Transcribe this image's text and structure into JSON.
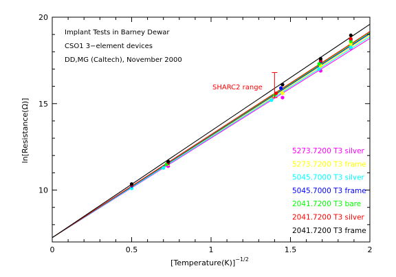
{
  "chart_data": {
    "type": "scatter",
    "xlabel_base": "[Temperature(K)]",
    "xlabel_exponent": "−1/2",
    "ylabel": "ln[Resistance(Ω)]",
    "xlim": [
      0,
      2
    ],
    "ylim": [
      7,
      20
    ],
    "x_ticks": [
      {
        "v": 0,
        "label": "0"
      },
      {
        "v": 0.5,
        "label": "0.5"
      },
      {
        "v": 1,
        "label": "1"
      },
      {
        "v": 1.5,
        "label": "1.5"
      },
      {
        "v": 2,
        "label": "2"
      }
    ],
    "y_ticks": [
      {
        "v": 10,
        "label": "10"
      },
      {
        "v": 15,
        "label": "15"
      },
      {
        "v": 20,
        "label": "20"
      }
    ],
    "notes": [
      "Implant Tests in Barney Dewar",
      "CSO1 3−element devices",
      "DD,MG (Caltech), November 2000"
    ],
    "annotation": {
      "text": "SHARC2 range",
      "color": "#ff0000",
      "x": 1.4,
      "y_low": 15.35,
      "y_high": 16.8
    },
    "series": [
      {
        "name": "5273.7200 T3 silver",
        "color": "#ff00ff",
        "intercept": 7.25,
        "slope": 5.76,
        "points": [
          [
            0.5,
            10.15
          ],
          [
            0.73,
            11.38
          ],
          [
            1.45,
            15.35
          ],
          [
            1.69,
            16.9
          ],
          [
            1.88,
            18.2
          ]
        ]
      },
      {
        "name": "5273.7200 T3 frame",
        "color": "#ffff00",
        "intercept": 7.25,
        "slope": 5.86,
        "points": [
          [
            0.5,
            10.2
          ],
          [
            0.73,
            11.5
          ],
          [
            1.45,
            15.6
          ],
          [
            1.69,
            17.2
          ],
          [
            1.88,
            18.45
          ]
        ]
      },
      {
        "name": "5045.7000 T3 silver",
        "color": "#00ffff",
        "intercept": 7.25,
        "slope": 5.81,
        "points": [
          [
            0.5,
            10.1
          ],
          [
            0.7,
            11.28
          ],
          [
            1.38,
            15.2
          ],
          [
            1.68,
            17.0
          ],
          [
            1.88,
            18.25
          ]
        ]
      },
      {
        "name": "5045.7000 T3 frame",
        "color": "#0000ff",
        "intercept": 7.25,
        "slope": 5.9,
        "points": [
          [
            0.5,
            10.25
          ],
          [
            0.73,
            11.55
          ],
          [
            1.44,
            15.9
          ],
          [
            1.69,
            17.45
          ],
          [
            1.88,
            18.7
          ]
        ]
      },
      {
        "name": "2041.7200 T3 bare",
        "color": "#00ff00",
        "intercept": 7.25,
        "slope": 5.93,
        "points": [
          [
            0.5,
            10.3
          ],
          [
            0.72,
            11.5
          ],
          [
            1.4,
            15.5
          ],
          [
            1.68,
            17.3
          ],
          [
            1.88,
            18.6
          ]
        ]
      },
      {
        "name": "2041.7200 T3 silver",
        "color": "#ff0000",
        "intercept": 7.25,
        "slope": 5.96,
        "points": [
          [
            0.5,
            10.3
          ],
          [
            0.73,
            11.6
          ],
          [
            1.41,
            15.6
          ],
          [
            1.69,
            17.5
          ],
          [
            1.88,
            18.75
          ]
        ]
      },
      {
        "name": "2041.7200 T3 frame",
        "color": "#000000",
        "intercept": 7.25,
        "slope": 6.17,
        "points": [
          [
            0.5,
            10.35
          ],
          [
            0.73,
            11.65
          ],
          [
            1.45,
            16.1
          ],
          [
            1.69,
            17.6
          ],
          [
            1.88,
            18.95
          ]
        ]
      }
    ]
  }
}
